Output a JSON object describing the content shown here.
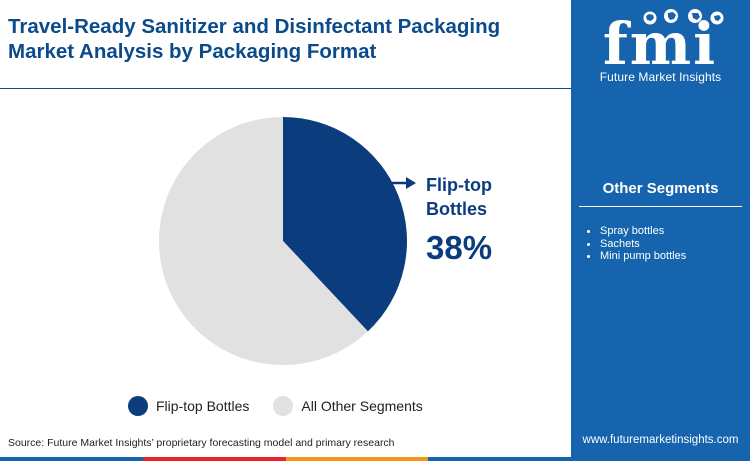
{
  "header": {
    "title_lines": [
      "Travel-Ready Sanitizer and Disinfectant Packaging",
      "Market Analysis by Packaging Format"
    ]
  },
  "brand": {
    "logo_text": "fmi",
    "name": "Future Market Insights",
    "website": "www.futuremarketinsights.com"
  },
  "sidebar": {
    "title": "Other Segments",
    "items": [
      "Spray bottles",
      "Sachets",
      "Mini pump bottles"
    ]
  },
  "chart_data": {
    "type": "pie",
    "slices": [
      {
        "label": "Flip-top Bottles",
        "value": 38,
        "color": "#0b3d7e"
      },
      {
        "label": "All Other Segments",
        "value": 62,
        "color": "#e1e1e1"
      }
    ],
    "callout": {
      "label_lines": [
        "Flip-top",
        "Bottles"
      ],
      "value_text": "38%",
      "color": "#0b3d7e"
    },
    "legend": [
      {
        "label": "Flip-top Bottles",
        "color": "#0b3d7e"
      },
      {
        "label": "All Other Segments",
        "color": "#e1e1e1"
      }
    ],
    "legend_position": "bottom"
  },
  "footer": {
    "source": "Source: Future Market Insights’ proprietary forecasting model and primary research",
    "bar_colors": [
      "#1664ad",
      "#e8232a",
      "#f7941d",
      "#1664ad"
    ]
  },
  "colors": {
    "title": "#0b4a8b",
    "panel": "#1664ad",
    "accent": "#0b3d7e"
  }
}
